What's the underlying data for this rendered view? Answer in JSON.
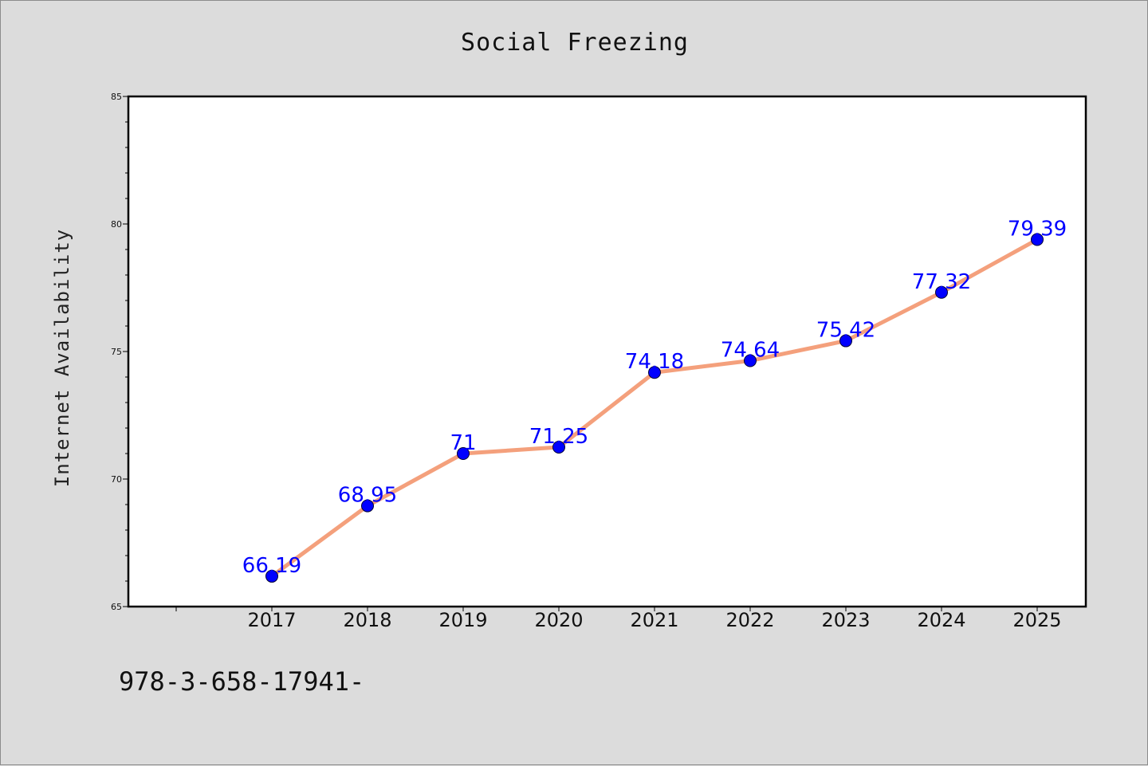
{
  "chart_data": {
    "type": "line",
    "title": "Social Freezing",
    "ylabel": "Internet Availability",
    "xlabel": "",
    "categories": [
      "2017",
      "2018",
      "2019",
      "2020",
      "2021",
      "2022",
      "2023",
      "2024",
      "2025"
    ],
    "series": [
      {
        "values": [
          66.19,
          68.95,
          71,
          71.25,
          74.18,
          74.64,
          75.42,
          77.32,
          79.39
        ],
        "labels": [
          "66.19",
          "68.95",
          "71",
          "71.25",
          "74.18",
          "74.64",
          "75.42",
          "77.32",
          "79.39"
        ],
        "line_color": "#f4a07c",
        "marker_color": "#0000ff"
      }
    ],
    "ylim": [
      65,
      85
    ],
    "yticks": [
      "65",
      "70",
      "75",
      "80",
      "85"
    ],
    "grid": false,
    "legend": "none"
  },
  "footer_text": "978-3-658-17941-",
  "colors": {
    "background": "#dcdcdc",
    "plot_background": "#ffffff",
    "data_label": "#0000ff"
  }
}
